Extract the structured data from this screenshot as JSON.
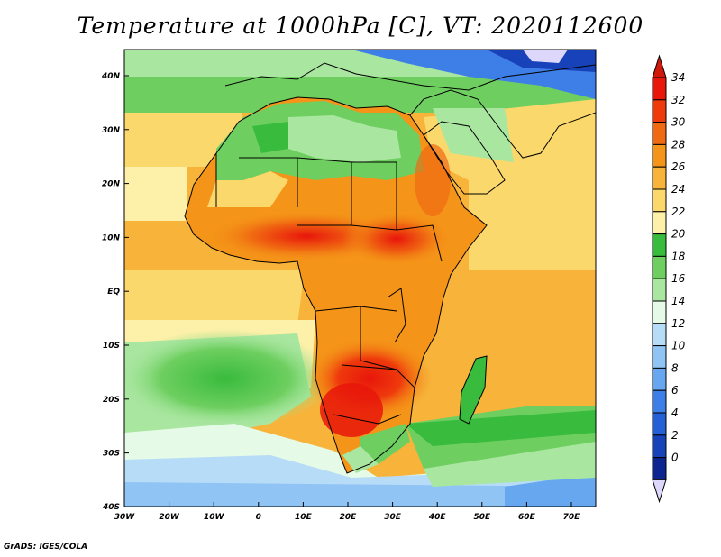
{
  "title": "Temperature at 1000hPa [C], VT: 2020112600",
  "credit": "GrADS: IGES/COLA",
  "axes": {
    "lon_ticks": [
      "30W",
      "20W",
      "10W",
      "0",
      "10E",
      "20E",
      "30E",
      "40E",
      "50E",
      "60E",
      "70E"
    ],
    "lat_ticks": [
      "40N",
      "30N",
      "20N",
      "10N",
      "EQ",
      "10S",
      "20S",
      "30S",
      "40S"
    ]
  },
  "colorbar": {
    "labels": [
      "34",
      "32",
      "30",
      "28",
      "26",
      "24",
      "22",
      "20",
      "18",
      "16",
      "14",
      "12",
      "10",
      "8",
      "6",
      "4",
      "2",
      "0"
    ],
    "colors_top_to_bottom": [
      "#e8160b",
      "#ef3a0c",
      "#f06a12",
      "#f49418",
      "#f7b33a",
      "#fad86b",
      "#fdf0a8",
      "#39bb3d",
      "#6ecf60",
      "#a9e6a0",
      "#e6fae8",
      "#b7dcf7",
      "#90c4f5",
      "#67a7ef",
      "#3e7ee7",
      "#2660d6",
      "#1742b9",
      "#0c2591"
    ],
    "over_color": "#d0180b",
    "under_color": "#dcd7fb"
  },
  "colors": {
    "ocean_far": "#a2cdf3",
    "ocean_mid": "#76c27a",
    "coast": "#000000"
  }
}
